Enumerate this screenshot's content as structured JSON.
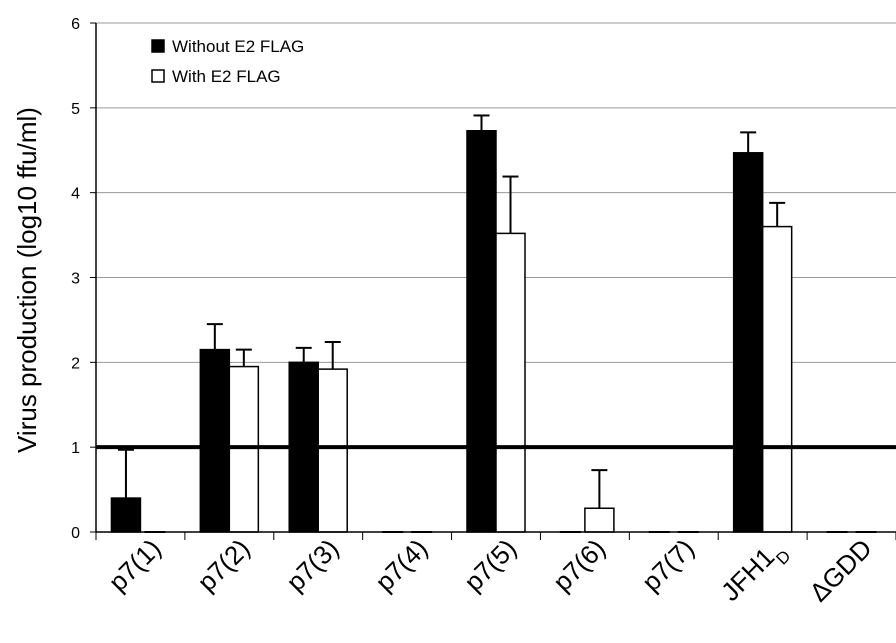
{
  "chart_data": {
    "type": "bar",
    "title": "",
    "ylabel": "Virus production (log10 ffu/ml)",
    "xlabel": "",
    "ylim": [
      0,
      6
    ],
    "yticks": [
      0,
      1,
      2,
      3,
      4,
      5,
      6
    ],
    "categories": [
      "p7(1)",
      "p7(2)",
      "p7(3)",
      "p7(4)",
      "p7(5)",
      "p7(6)",
      "p7(7)",
      "JFH1",
      "ΔGDD"
    ],
    "category_subscripts": [
      "",
      "",
      "",
      "",
      "",
      "",
      "",
      "D",
      ""
    ],
    "threshold_line": 1,
    "legend_position": "top-left",
    "grid": true,
    "series": [
      {
        "name": "Without E2 FLAG",
        "color": "#000000",
        "fill": "#000000",
        "values": [
          0.4,
          2.15,
          2.0,
          0,
          4.73,
          0,
          0,
          4.47,
          0
        ],
        "errors": [
          0.57,
          0.3,
          0.17,
          0,
          0.18,
          0,
          0,
          0.24,
          0
        ]
      },
      {
        "name": "With E2 FLAG",
        "color": "#000000",
        "fill": "#ffffff",
        "values": [
          0,
          1.95,
          1.92,
          0,
          3.52,
          0.28,
          0,
          3.6,
          0
        ],
        "errors": [
          0,
          0.2,
          0.32,
          0,
          0.67,
          0.45,
          0,
          0.28,
          0
        ]
      }
    ]
  }
}
